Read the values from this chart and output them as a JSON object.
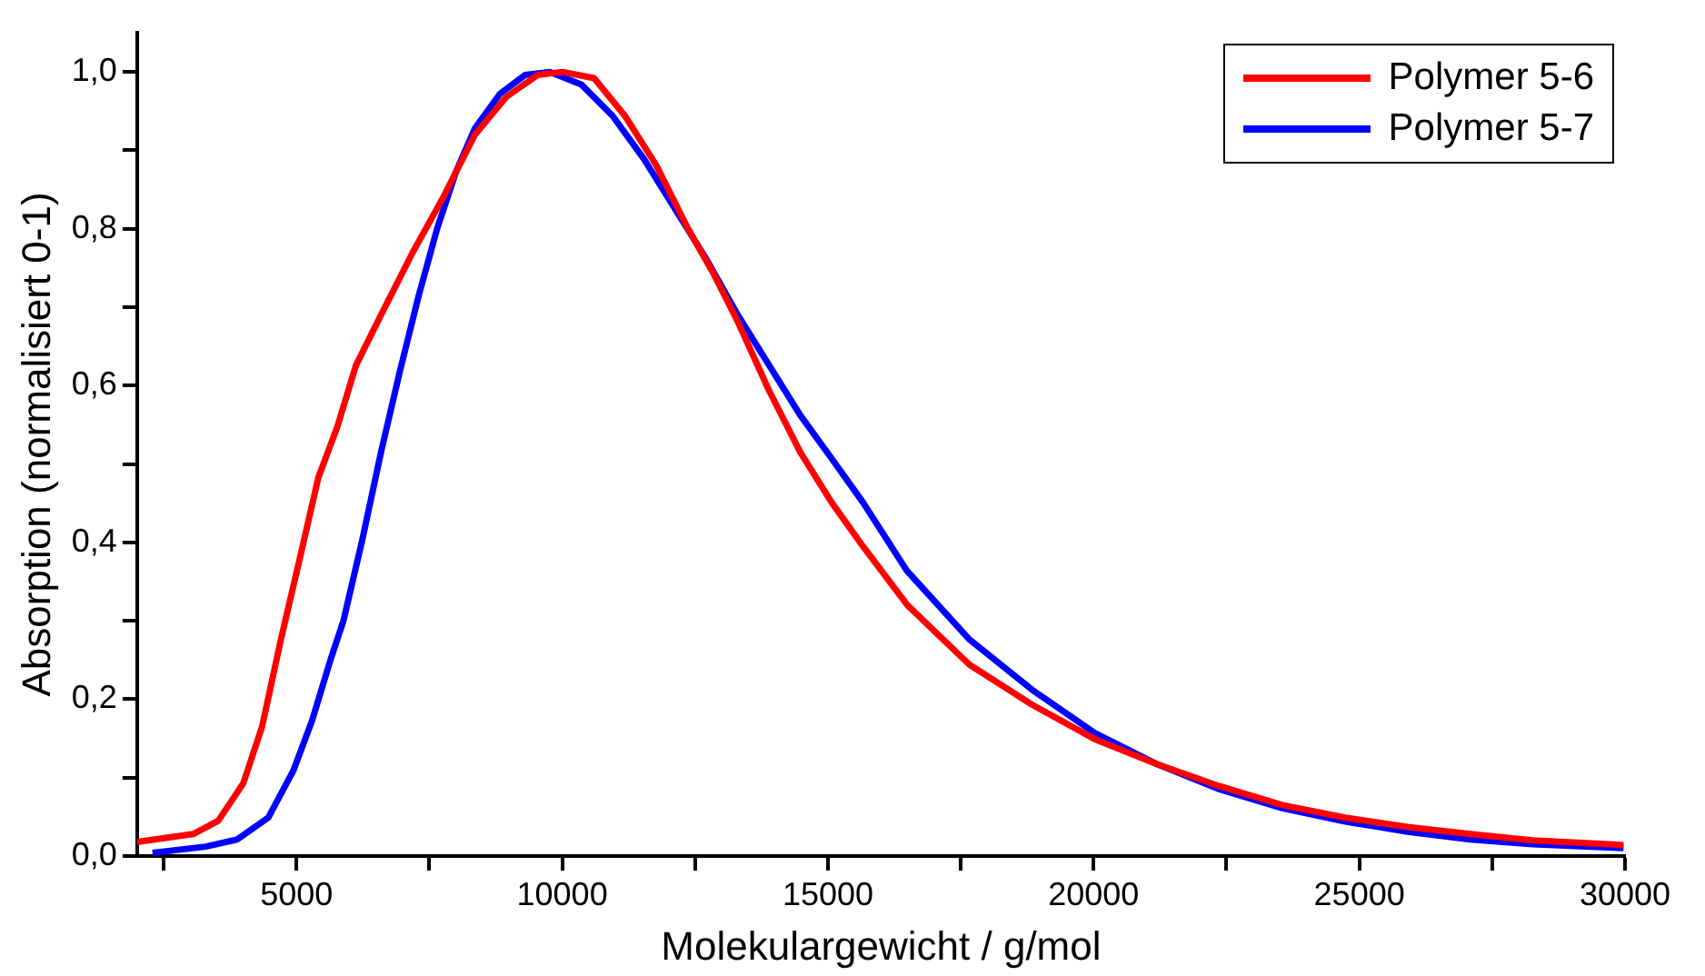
{
  "chart_data": {
    "type": "line",
    "xlabel": "Molekulargewicht / g/mol",
    "ylabel": "Absorption (normalisiert 0-1)",
    "xlim": [
      2000,
      30000
    ],
    "ylim": [
      0,
      1.05
    ],
    "xticks": [
      {
        "value": 2500,
        "label": null
      },
      5000,
      {
        "value": 7500,
        "label": null
      },
      10000,
      {
        "value": 12500,
        "label": null
      },
      15000,
      {
        "value": 17500,
        "label": null
      },
      20000,
      {
        "value": 22500,
        "label": null
      },
      25000,
      {
        "value": 27500,
        "label": null
      },
      30000
    ],
    "yticks": [
      {
        "value": 0,
        "label": "0,0"
      },
      {
        "value": 0.1,
        "label": null
      },
      {
        "value": 0.2,
        "label": "0,2"
      },
      {
        "value": 0.3,
        "label": null
      },
      {
        "value": 0.4,
        "label": "0,4"
      },
      {
        "value": 0.5,
        "label": null
      },
      {
        "value": 0.6,
        "label": "0,6"
      },
      {
        "value": 0.7,
        "label": null
      },
      {
        "value": 0.8,
        "label": "0,8"
      },
      {
        "value": 0.9,
        "label": null
      },
      {
        "value": 1,
        "label": "1,0"
      }
    ],
    "grid": false,
    "legend": "top right",
    "marker": "none",
    "line_style": "solid",
    "series": [
      {
        "name": "Polymer 5-6",
        "color": "#ff0000",
        "x": [
          2000,
          3056,
          3528,
          4000,
          4352,
          4706,
          5060,
          5412,
          5766,
          6120,
          6590,
          7180,
          7768,
          8357,
          8946,
          9535,
          10006,
          10600,
          11180,
          11770,
          12360,
          12830,
          13300,
          13890,
          14480,
          15070,
          15660,
          16495,
          17665,
          18843,
          20023,
          21200,
          22375,
          23552,
          24735,
          25908,
          27085,
          28265,
          29972
        ],
        "values": [
          0.018,
          0.028,
          0.045,
          0.093,
          0.165,
          0.276,
          0.379,
          0.483,
          0.547,
          0.626,
          0.69,
          0.769,
          0.841,
          0.92,
          0.968,
          0.996,
          1,
          0.992,
          0.944,
          0.881,
          0.801,
          0.745,
          0.682,
          0.594,
          0.515,
          0.451,
          0.395,
          0.32,
          0.244,
          0.193,
          0.149,
          0.117,
          0.089,
          0.065,
          0.049,
          0.037,
          0.028,
          0.02,
          0.014
        ]
      },
      {
        "name": "Polymer 5-7",
        "color": "#0000ff",
        "x": [
          2290,
          3292,
          3880,
          4470,
          4941,
          5294,
          5648,
          5883,
          6237,
          6590,
          6944,
          7297,
          7650,
          8004,
          8357,
          8828,
          9300,
          9770,
          10360,
          10948,
          11537,
          12126,
          12715,
          13304,
          13893,
          14482,
          15070,
          15660,
          16484,
          17665,
          18843,
          20023,
          21200,
          22375,
          23552,
          24735,
          25908,
          27085,
          28265,
          29972
        ],
        "values": [
          0.004,
          0.012,
          0.021,
          0.049,
          0.109,
          0.173,
          0.252,
          0.3,
          0.403,
          0.515,
          0.618,
          0.714,
          0.801,
          0.873,
          0.928,
          0.972,
          0.996,
          1,
          0.984,
          0.944,
          0.889,
          0.825,
          0.761,
          0.69,
          0.626,
          0.562,
          0.507,
          0.451,
          0.364,
          0.276,
          0.212,
          0.157,
          0.117,
          0.085,
          0.061,
          0.044,
          0.031,
          0.021,
          0.015,
          0.01
        ]
      }
    ]
  }
}
